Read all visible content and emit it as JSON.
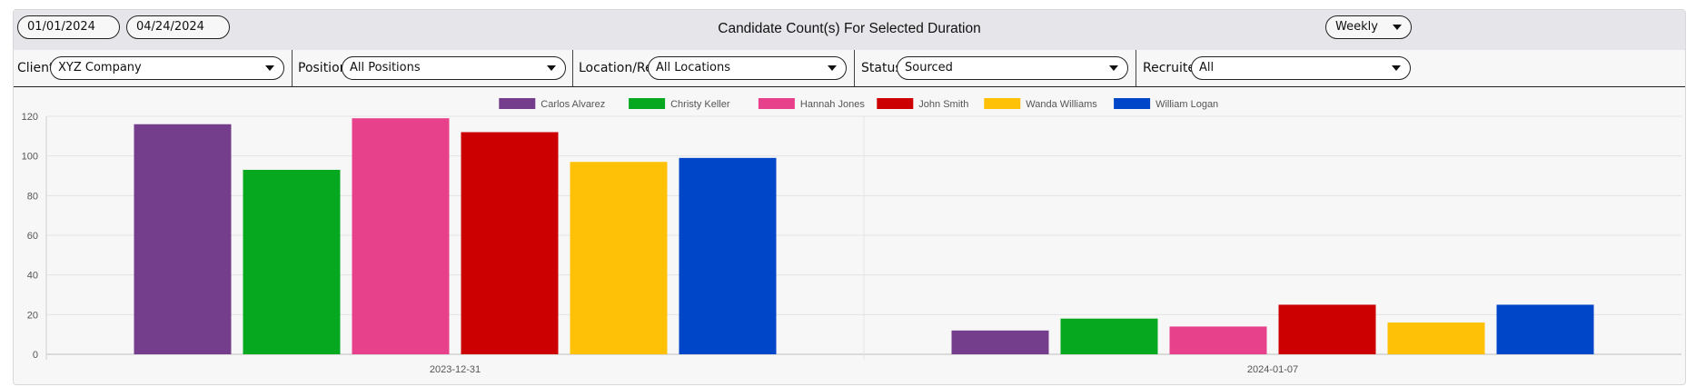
{
  "header": {
    "start_date": "01/01/2024",
    "end_date": "04/24/2024",
    "title": "Candidate Count(s) For Selected Duration",
    "interval": "Weekly"
  },
  "filters": [
    {
      "label": "Client",
      "value": "XYZ Company"
    },
    {
      "label": "Position",
      "value": "All Positions"
    },
    {
      "label": "Location/Req",
      "value": "All Locations"
    },
    {
      "label": "Status",
      "value": "Sourced"
    },
    {
      "label": "Recruiter",
      "value": "All"
    }
  ],
  "chart_data": {
    "type": "bar",
    "categories": [
      "2023-12-31",
      "2024-01-07"
    ],
    "series": [
      {
        "name": "Carlos Alvarez",
        "color": "#753e8c",
        "values": [
          116,
          12
        ]
      },
      {
        "name": "Christy Keller",
        "color": "#05a81e",
        "values": [
          93,
          18
        ]
      },
      {
        "name": "Hannah Jones",
        "color": "#e8418b",
        "values": [
          119,
          14
        ]
      },
      {
        "name": "John Smith",
        "color": "#cc0000",
        "values": [
          112,
          25
        ]
      },
      {
        "name": "Wanda Williams",
        "color": "#ffc107",
        "values": [
          97,
          16
        ]
      },
      {
        "name": "William Logan",
        "color": "#0046c9",
        "values": [
          99,
          25
        ]
      }
    ],
    "ylim": [
      0,
      120
    ],
    "yticks": [
      0,
      20,
      40,
      60,
      80,
      100,
      120
    ],
    "grid": true,
    "legend": "top"
  }
}
